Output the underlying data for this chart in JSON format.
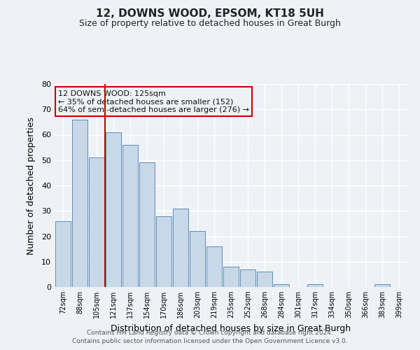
{
  "title": "12, DOWNS WOOD, EPSOM, KT18 5UH",
  "subtitle": "Size of property relative to detached houses in Great Burgh",
  "xlabel": "Distribution of detached houses by size in Great Burgh",
  "ylabel": "Number of detached properties",
  "footer1": "Contains HM Land Registry data © Crown copyright and database right 2024.",
  "footer2": "Contains public sector information licensed under the Open Government Licence v3.0.",
  "categories": [
    "72sqm",
    "88sqm",
    "105sqm",
    "121sqm",
    "137sqm",
    "154sqm",
    "170sqm",
    "186sqm",
    "203sqm",
    "219sqm",
    "235sqm",
    "252sqm",
    "268sqm",
    "284sqm",
    "301sqm",
    "317sqm",
    "334sqm",
    "350sqm",
    "366sqm",
    "383sqm",
    "399sqm"
  ],
  "values": [
    26,
    66,
    51,
    61,
    56,
    49,
    28,
    31,
    22,
    16,
    8,
    7,
    6,
    1,
    0,
    1,
    0,
    0,
    0,
    1,
    0
  ],
  "bar_color": "#c8d8e8",
  "bar_edge_color": "#5b8db8",
  "background_color": "#eef2f7",
  "grid_color": "#ffffff",
  "vline_color": "#cc0000",
  "annotation_box_text": "12 DOWNS WOOD: 125sqm\n← 35% of detached houses are smaller (152)\n64% of semi-detached houses are larger (276) →",
  "annotation_box_edge_color": "#cc0000",
  "ylim": [
    0,
    80
  ],
  "yticks": [
    0,
    10,
    20,
    30,
    40,
    50,
    60,
    70,
    80
  ]
}
